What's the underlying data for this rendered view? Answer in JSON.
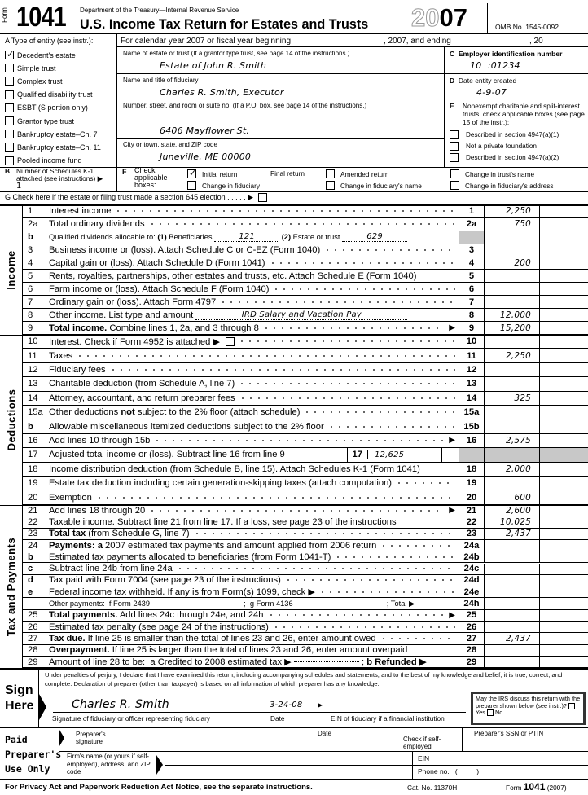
{
  "header": {
    "form_word": "Form",
    "form_number": "1041",
    "department": "Department of the Treasury—Internal Revenue Service",
    "title": "U.S. Income Tax Return for Estates and Trusts",
    "year_outline": "20",
    "year_bold": "07",
    "omb": "OMB No. 1545-0092"
  },
  "entity": {
    "a_label": "A  Type of entity (see instr.):",
    "types": [
      {
        "label": "Decedent's estate",
        "checked": true
      },
      {
        "label": "Simple trust",
        "checked": false
      },
      {
        "label": "Complex trust",
        "checked": false
      },
      {
        "label": "Qualified disability trust",
        "checked": false
      },
      {
        "label": "ESBT (S portion only)",
        "checked": false
      },
      {
        "label": "Grantor type trust",
        "checked": false
      },
      {
        "label": "Bankruptcy estate–Ch. 7",
        "checked": false
      },
      {
        "label": "Bankruptcy estate–Ch. 11",
        "checked": false
      },
      {
        "label": "Pooled income fund",
        "checked": false
      }
    ],
    "fiscal_year": "For calendar year 2007 or fiscal year beginning",
    "fiscal_mid": ", 2007, and ending",
    "fiscal_end": ", 20",
    "name_label": "Name of estate or trust (If a grantor type trust, see page 14 of the instructions.)",
    "name_value": "Estate of John R. Smith",
    "fiduciary_label": "Name and title of fiduciary",
    "fiduciary_value": "Charles R. Smith, Executor",
    "street_label": "Number, street, and room or suite no. (If a P.O. box, see page 14 of the instructions.)",
    "street_value": "6406 Mayflower St.",
    "city_label": "City or town, state, and ZIP code",
    "city_value": "Juneville, ME 00000",
    "c_letter": "C",
    "c_label": "Employer identification number",
    "ein_prefix": "10",
    "ein_suffix": "01234",
    "d_letter": "D",
    "d_label": "Date entity created",
    "d_value": "4-9-07",
    "e_letter": "E",
    "e_label": "Nonexempt charitable and split-interest trusts, check applicable boxes (see page 15 of the instr.):",
    "e_options": [
      "Described in section 4947(a)(1)",
      "Not a private foundation",
      "Described in section 4947(a)(2)"
    ],
    "b_letter": "B",
    "b_label": "Number of Schedules K-1 attached (see instructions) ▶",
    "b_value": "1",
    "f_letter": "F",
    "f_label": "Check applicable boxes:",
    "f_options": [
      {
        "label": "Initial return",
        "checked": true
      },
      {
        "label": "Final return",
        "checked": false
      },
      {
        "label": "Amended return",
        "checked": false
      },
      {
        "label": "Change in trust's name",
        "checked": false
      },
      {
        "label": "Change in fiduciary",
        "checked": false
      },
      {
        "label": "Change in fiduciary's name",
        "checked": false
      },
      {
        "label": "Change in fiduciary's address",
        "checked": false
      }
    ],
    "g_label": "G  Check here if the estate or filing trust made a section 645 election  .  .  .  .  .  ▶"
  },
  "sections": {
    "income": "Income",
    "deductions": "Deductions",
    "tax": "Tax and Payments"
  },
  "lines": [
    {
      "n": "1",
      "segs": [
        {
          "t": "Interest income"
        }
      ],
      "box": "1",
      "amt": "2,250",
      "lead": true
    },
    {
      "n": "2a",
      "segs": [
        {
          "t": "Total ordinary dividends"
        }
      ],
      "box": "2a",
      "amt": "750",
      "lead": true
    },
    {
      "n": "b",
      "segs": [
        {
          "t": "Qualified dividends allocable to: "
        },
        {
          "b": "(1) "
        },
        {
          "t": "Beneficiaries "
        },
        {
          "f": "121"
        },
        {
          "b": " (2) "
        },
        {
          "t": "Estate or trust "
        },
        {
          "f": "629"
        }
      ],
      "box": "",
      "shade": true,
      "small": true
    },
    {
      "n": "3",
      "segs": [
        {
          "t": "Business income or (loss). Attach Schedule C or C-EZ (Form 1040)"
        }
      ],
      "box": "3",
      "amt": "",
      "lead": true
    },
    {
      "n": "4",
      "segs": [
        {
          "t": "Capital gain or (loss). Attach Schedule D (Form 1041)"
        }
      ],
      "box": "4",
      "amt": "200",
      "lead": true
    },
    {
      "n": "5",
      "segs": [
        {
          "t": "Rents, royalties, partnerships, other estates and trusts, etc. Attach Schedule E (Form 1040)"
        }
      ],
      "box": "5",
      "amt": ""
    },
    {
      "n": "6",
      "segs": [
        {
          "t": "Farm income or (loss). Attach Schedule F (Form 1040)"
        }
      ],
      "box": "6",
      "amt": "",
      "lead": true
    },
    {
      "n": "7",
      "segs": [
        {
          "t": "Ordinary gain or (loss). Attach Form 4797"
        }
      ],
      "box": "7",
      "amt": "",
      "lead": true
    },
    {
      "n": "8",
      "segs": [
        {
          "t": "Other income. List type and amount "
        },
        {
          "f": "IRD Salary and Vacation Pay"
        }
      ],
      "box": "8",
      "amt": "12,000"
    },
    {
      "n": "9",
      "segs": [
        {
          "b": "Total income. "
        },
        {
          "t": "Combine lines 1, 2a, and 3 through 8"
        }
      ],
      "box": "9",
      "amt": "15,200",
      "lead": true,
      "arrow": true
    },
    {
      "n": "10",
      "segs": [
        {
          "t": "Interest. Check if Form 4952 is attached ▶ "
        },
        {
          "cb": true
        }
      ],
      "box": "10",
      "amt": "",
      "lead": true
    },
    {
      "n": "11",
      "segs": [
        {
          "t": "Taxes"
        }
      ],
      "box": "11",
      "amt": "2,250",
      "lead": true
    },
    {
      "n": "12",
      "segs": [
        {
          "t": "Fiduciary fees"
        }
      ],
      "box": "12",
      "amt": "",
      "lead": true
    },
    {
      "n": "13",
      "segs": [
        {
          "t": "Charitable deduction (from Schedule A, line 7)"
        }
      ],
      "box": "13",
      "amt": "",
      "lead": true
    },
    {
      "n": "14",
      "segs": [
        {
          "t": "Attorney, accountant, and return preparer fees"
        }
      ],
      "box": "14",
      "amt": "325",
      "lead": true
    },
    {
      "n": "15a",
      "segs": [
        {
          "t": "Other deductions "
        },
        {
          "b": "not"
        },
        {
          "t": " subject to the 2% floor (attach schedule)"
        }
      ],
      "box": "15a",
      "amt": "",
      "lead": true
    },
    {
      "n": "b",
      "segs": [
        {
          "t": "Allowable miscellaneous itemized deductions subject to the 2% floor"
        }
      ],
      "box": "15b",
      "amt": "",
      "lead": true
    },
    {
      "n": "16",
      "segs": [
        {
          "t": "Add lines 10 through 15b"
        }
      ],
      "box": "16",
      "amt": "2,575",
      "lead": true,
      "arrow": true
    },
    {
      "n": "17",
      "segs": [
        {
          "t": "Adjusted total income or (loss). Subtract line 16 from line 9"
        }
      ],
      "box": "",
      "shade": true,
      "inner_box": "17",
      "inner_amt": "12,625"
    },
    {
      "n": "18",
      "segs": [
        {
          "t": "Income distribution deduction (from Schedule B, line 15). Attach Schedules K-1 (Form 1041)"
        }
      ],
      "box": "18",
      "amt": "2,000"
    },
    {
      "n": "19",
      "segs": [
        {
          "t": "Estate tax deduction including certain generation-skipping taxes (attach computation)"
        }
      ],
      "box": "19",
      "amt": "",
      "lead": true
    },
    {
      "n": "20",
      "segs": [
        {
          "t": "Exemption"
        }
      ],
      "box": "20",
      "amt": "600",
      "lead": true
    },
    {
      "n": "21",
      "segs": [
        {
          "t": "Add lines 18 through 20"
        }
      ],
      "box": "21",
      "amt": "2,600",
      "lead": true,
      "arrow": true
    },
    {
      "n": "22",
      "segs": [
        {
          "t": "Taxable income. Subtract line 21 from line 17. If a loss, see page 23 of the instructions"
        }
      ],
      "box": "22",
      "amt": "10,025"
    },
    {
      "n": "23",
      "segs": [
        {
          "b": "Total tax"
        },
        {
          "t": " (from Schedule G, line 7)"
        }
      ],
      "box": "23",
      "amt": "2,437",
      "lead": true
    },
    {
      "n": "24",
      "segs": [
        {
          "b": "Payments: a"
        },
        {
          "t": " 2007 estimated tax payments and amount applied from 2006 return"
        }
      ],
      "box": "24a",
      "amt": "",
      "lead": true
    },
    {
      "n": "b",
      "segs": [
        {
          "t": "Estimated tax payments allocated to beneficiaries (from Form 1041-T)"
        }
      ],
      "box": "24b",
      "amt": "",
      "lead": true
    },
    {
      "n": "c",
      "segs": [
        {
          "t": "Subtract line 24b from line 24a"
        }
      ],
      "box": "24c",
      "amt": "",
      "lead": true
    },
    {
      "n": "d",
      "segs": [
        {
          "t": "Tax paid with Form 7004 (see page 23 of the instructions)"
        }
      ],
      "box": "24d",
      "amt": "",
      "lead": true
    },
    {
      "n": "e",
      "segs": [
        {
          "t": "Federal income tax withheld. If any is from Form(s) 1099, check ▶"
        }
      ],
      "box": "24e",
      "amt": "",
      "lead": true
    },
    {
      "n": "",
      "segs": [
        {
          "t": "Other payments:  f Form 2439 "
        },
        {
          "f": ""
        },
        {
          "t": " ;  g Form 4136 "
        },
        {
          "f": ""
        },
        {
          "t": " ; Total ▶"
        }
      ],
      "box": "24h",
      "amt": "",
      "small": true
    },
    {
      "n": "25",
      "segs": [
        {
          "b": "Total payments."
        },
        {
          "t": " Add lines 24c through 24e, and 24h"
        }
      ],
      "box": "25",
      "amt": "",
      "lead": true,
      "arrow": true
    },
    {
      "n": "26",
      "segs": [
        {
          "t": "Estimated tax penalty (see page 24 of the instructions)"
        }
      ],
      "box": "26",
      "amt": "",
      "lead": true
    },
    {
      "n": "27",
      "segs": [
        {
          "b": "Tax due."
        },
        {
          "t": " If line 25 is smaller than the total of lines 23 and 26, enter amount owed"
        }
      ],
      "box": "27",
      "amt": "2,437",
      "lead": true
    },
    {
      "n": "28",
      "segs": [
        {
          "b": "Overpayment."
        },
        {
          "t": " If line 25 is larger than the total of lines 23 and 26, enter amount overpaid"
        }
      ],
      "box": "28",
      "amt": ""
    },
    {
      "n": "29",
      "segs": [
        {
          "t": "Amount of line 28 to be:  a Credited to 2008 estimated tax ▶ "
        },
        {
          "f": ""
        },
        {
          "t": " ; "
        },
        {
          "b": "b Refunded ▶"
        }
      ],
      "box": "29",
      "amt": ""
    }
  ],
  "sign": {
    "title1": "Sign",
    "title2": "Here",
    "perjury": "Under penalties of perjury, I declare that I have examined this return, including accompanying schedules and statements, and to the best of my knowledge and belief, it is true, correct, and complete. Declaration of preparer (other than taxpayer) is based on all information of which preparer has any knowledge.",
    "signature": "Charles R. Smith",
    "date": "3-24-08",
    "sig_caption": "Signature of fiduciary or officer representing fiduciary",
    "date_caption": "Date",
    "ein_caption": "EIN of fiduciary if a financial institution",
    "discuss": "May the IRS discuss this return with the preparer shown below (see instr.)?",
    "yes": "Yes",
    "no": "No"
  },
  "preparer": {
    "title1": "Paid",
    "title2": "Preparer's",
    "title3": "Use Only",
    "sig_label": "Preparer's signature",
    "date_label": "Date",
    "self_employed": "Check if self-employed",
    "ssn_label": "Preparer's SSN or PTIN",
    "firm_label": "Firm's name (or yours if self-employed), address, and ZIP code",
    "ein_label": "EIN",
    "phone_label": "Phone no.",
    "phone_value": "(          )"
  },
  "footer": {
    "privacy": "For Privacy Act and Paperwork Reduction Act Notice, see the separate instructions.",
    "cat": "Cat. No. 11370H",
    "form_word": "Form",
    "form_number": "1041",
    "year": "(2007)"
  }
}
